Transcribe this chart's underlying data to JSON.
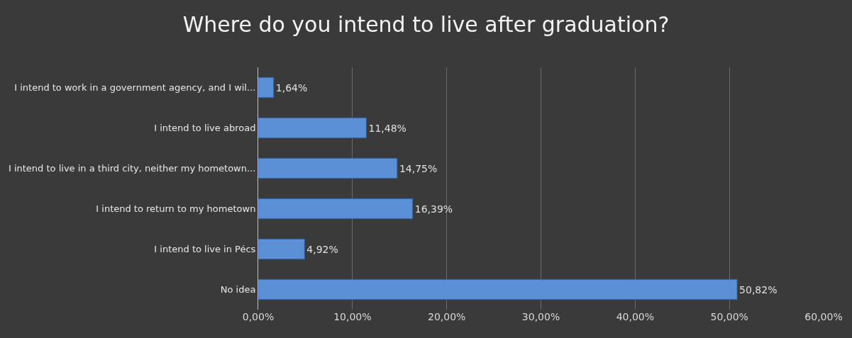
{
  "chart_data": {
    "type": "bar",
    "orientation": "horizontal",
    "title": "Where do you intend to live after graduation?",
    "categories": [
      "I intend to work in a government agency, and I wil...",
      "I intend to live abroad",
      "I intend to live in a third city, neither my hometown...",
      "I intend to return to my hometown",
      "I intend to live in Pécs",
      "No idea"
    ],
    "values": [
      1.64,
      11.48,
      14.75,
      16.39,
      4.92,
      50.82
    ],
    "value_labels": [
      "1,64%",
      "11,48%",
      "14,75%",
      "16,39%",
      "4,92%",
      "50,82%"
    ],
    "color": "#5b8fd6",
    "xlim": [
      0,
      60
    ],
    "xticks": [
      {
        "value": 0,
        "label": "0,00%"
      },
      {
        "value": 10,
        "label": "10,00%"
      },
      {
        "value": 20,
        "label": "20,00%"
      },
      {
        "value": 30,
        "label": "30,00%"
      },
      {
        "value": 40,
        "label": "40,00%"
      },
      {
        "value": 50,
        "label": "50,00%"
      },
      {
        "value": 60,
        "label": "60,00%"
      }
    ],
    "grid": "x",
    "legend": false
  }
}
